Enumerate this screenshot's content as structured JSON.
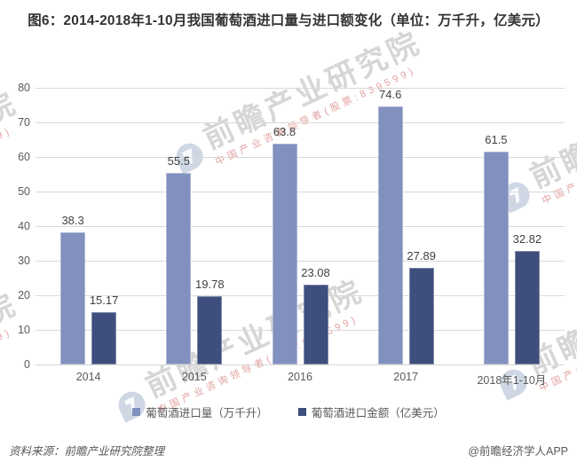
{
  "title": "图6：2014-2018年1-10月我国葡萄酒进口量与进口额变化（单位：万千升，亿美元）",
  "chart_data": {
    "type": "bar",
    "title": "图6：2014-2018年1-10月我国葡萄酒进口量与进口额变化（单位：万千升，亿美元）",
    "categories": [
      "2014",
      "2015",
      "2016",
      "2017",
      "2018年1-10月"
    ],
    "series": [
      {
        "name": "葡萄酒进口量（万千升）",
        "values": [
          38.3,
          55.5,
          63.8,
          74.6,
          61.5
        ],
        "color": "#8190BE"
      },
      {
        "name": "葡萄酒进口金额（亿美元）",
        "values": [
          15.17,
          19.78,
          23.08,
          27.89,
          32.82
        ],
        "color": "#3E4E7D"
      }
    ],
    "xlabel": "",
    "ylabel": "",
    "ylim": [
      0,
      80
    ],
    "ytick_step": 10,
    "yticks": [
      0,
      10,
      20,
      30,
      40,
      50,
      60,
      70,
      80
    ],
    "grid": true,
    "legend_position": "bottom",
    "value_labels": true
  },
  "footer": {
    "source": "资料来源：前瞻产业研究院整理",
    "credit": "@前瞻经济学人APP"
  },
  "watermark": {
    "brand": "前瞻产业研究院",
    "tagline": "中国产业咨询领导者(股票:839599)"
  },
  "colors": {
    "series1": "#8190BE",
    "series2": "#3E4E7D",
    "gridline": "#D9D9D9",
    "axis_text": "#595959",
    "value_text": "#404040",
    "title_text": "#333333",
    "background": "#FFFFFF"
  }
}
